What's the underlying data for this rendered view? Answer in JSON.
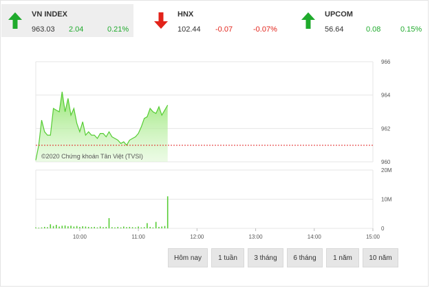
{
  "tabs": [
    {
      "name": "VN INDEX",
      "value": "963.03",
      "change": "2.04",
      "pct": "0.21%",
      "direction": "up",
      "icon": "arrow-up-icon"
    },
    {
      "name": "HNX",
      "value": "102.44",
      "change": "-0.07",
      "pct": "-0.07%",
      "direction": "down",
      "icon": "arrow-down-icon"
    },
    {
      "name": "UPCOM",
      "value": "56.64",
      "change": "0.08",
      "pct": "0.15%",
      "direction": "up",
      "icon": "arrow-up-icon"
    }
  ],
  "colors": {
    "up": "#1faa2c",
    "down": "#e2231a",
    "area_line": "#55cc33",
    "area_fill": "#a6ec8c",
    "reference": "#e02020",
    "grid": "#e6e6e6"
  },
  "watermark": "©2020 Chứng khoán Tân Việt (TVSI)",
  "buttons": [
    "Hôm nay",
    "1 tuần",
    "3 tháng",
    "6 tháng",
    "1 năm",
    "10 năm"
  ],
  "chart_data": {
    "type": "area",
    "title": "",
    "x_ticks": [
      "10:00",
      "11:00",
      "12:00",
      "13:00",
      "14:00",
      "15:00"
    ],
    "price": {
      "ylim": [
        960,
        966
      ],
      "y_ticks": [
        "966",
        "964",
        "962",
        "960"
      ],
      "reference": 960.99,
      "x": [
        "09:15",
        "09:18",
        "09:21",
        "09:24",
        "09:27",
        "09:30",
        "09:33",
        "09:36",
        "09:39",
        "09:42",
        "09:45",
        "09:48",
        "09:51",
        "09:54",
        "09:57",
        "10:00",
        "10:03",
        "10:06",
        "10:09",
        "10:12",
        "10:15",
        "10:18",
        "10:21",
        "10:24",
        "10:27",
        "10:30",
        "10:33",
        "10:36",
        "10:39",
        "10:42",
        "10:45",
        "10:48",
        "10:51",
        "10:54",
        "10:57",
        "11:00",
        "11:03",
        "11:06",
        "11:09",
        "11:12",
        "11:15",
        "11:18",
        "11:21",
        "11:24",
        "11:27",
        "11:30"
      ],
      "values": [
        960.1,
        961.0,
        962.5,
        961.8,
        961.6,
        961.6,
        963.2,
        963.1,
        963.0,
        964.2,
        963.0,
        963.8,
        962.8,
        963.2,
        962.3,
        961.8,
        962.4,
        961.6,
        961.8,
        961.6,
        961.6,
        961.4,
        961.7,
        961.7,
        961.5,
        961.8,
        961.5,
        961.4,
        961.3,
        961.1,
        961.2,
        961.0,
        961.3,
        961.4,
        961.5,
        961.7,
        962.1,
        962.6,
        962.7,
        963.2,
        963.0,
        962.9,
        963.3,
        962.8,
        963.1,
        963.4
      ]
    },
    "volume": {
      "ylim": [
        0,
        20
      ],
      "unit": "M",
      "y_ticks": [
        "20M",
        "10M",
        "0"
      ],
      "values": [
        0.3,
        0.2,
        0.3,
        0.5,
        0.4,
        1.4,
        0.8,
        1.2,
        0.6,
        0.9,
        1.0,
        0.7,
        0.9,
        0.6,
        0.8,
        0.5,
        0.7,
        0.6,
        0.5,
        0.4,
        0.5,
        0.3,
        0.6,
        0.4,
        0.5,
        3.5,
        0.4,
        0.3,
        0.5,
        0.3,
        0.6,
        0.4,
        0.5,
        0.4,
        0.3,
        0.6,
        0.3,
        0.4,
        1.8,
        0.5,
        0.3,
        2.2,
        0.5,
        0.6,
        0.8,
        11.0
      ]
    }
  }
}
